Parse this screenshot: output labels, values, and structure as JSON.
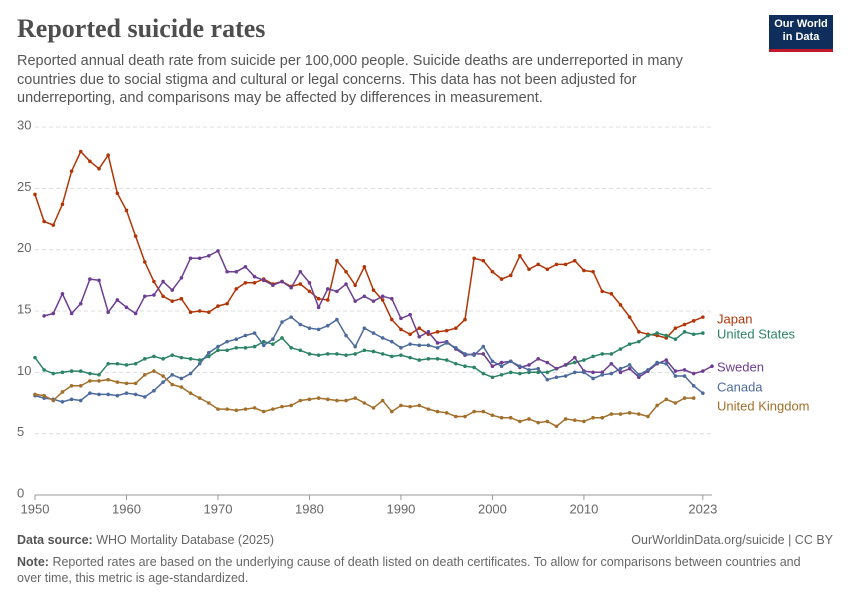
{
  "header": {
    "title": "Reported suicide rates",
    "subtitle": "Reported annual death rate from suicide per 100,000 people. Suicide deaths are underreported in many countries due to social stigma and cultural or legal concerns. This data has not been adjusted for underreporting, and comparisons may be affected by differences in measurement.",
    "logo": [
      "Our World",
      "in Data"
    ]
  },
  "chart_data": {
    "type": "line",
    "grid": true,
    "x": [
      1950,
      1951,
      1952,
      1953,
      1954,
      1955,
      1956,
      1957,
      1958,
      1959,
      1960,
      1961,
      1962,
      1963,
      1964,
      1965,
      1966,
      1967,
      1968,
      1969,
      1970,
      1971,
      1972,
      1973,
      1974,
      1975,
      1976,
      1977,
      1978,
      1979,
      1980,
      1981,
      1982,
      1983,
      1984,
      1985,
      1986,
      1987,
      1988,
      1989,
      1990,
      1991,
      1992,
      1993,
      1994,
      1995,
      1996,
      1997,
      1998,
      1999,
      2000,
      2001,
      2002,
      2003,
      2004,
      2005,
      2006,
      2007,
      2008,
      2009,
      2010,
      2011,
      2012,
      2013,
      2014,
      2015,
      2016,
      2017,
      2018,
      2019,
      2020,
      2021,
      2022,
      2023,
      2024
    ],
    "xlim": [
      1950,
      2024
    ],
    "xticks": [
      1950,
      1960,
      1970,
      1980,
      1990,
      2000,
      2010,
      2023
    ],
    "ylim": [
      0,
      30
    ],
    "yticks": [
      0,
      5,
      10,
      15,
      20,
      25,
      30
    ],
    "series": [
      {
        "name": "Japan",
        "color": "#b13507",
        "values": [
          24.5,
          22.3,
          22.0,
          23.7,
          26.4,
          28.0,
          27.2,
          26.6,
          27.7,
          24.6,
          23.2,
          21.1,
          19.0,
          17.4,
          16.2,
          15.8,
          16.0,
          14.9,
          15.0,
          14.9,
          15.4,
          15.6,
          16.8,
          17.3,
          17.3,
          17.6,
          17.2,
          17.4,
          17.0,
          17.2,
          16.6,
          16.0,
          15.9,
          19.1,
          18.2,
          17.1,
          18.6,
          16.7,
          15.9,
          14.3,
          13.5,
          13.1,
          13.6,
          13.1,
          13.3,
          13.4,
          13.6,
          14.3,
          19.3,
          19.1,
          18.2,
          17.6,
          17.9,
          19.5,
          18.4,
          18.8,
          18.4,
          18.8,
          18.8,
          19.1,
          18.3,
          18.2,
          16.6,
          16.4,
          15.5,
          14.5,
          13.3,
          13.1,
          13.0,
          12.8,
          13.6,
          13.9,
          14.2,
          14.5,
          null
        ]
      },
      {
        "name": "United States",
        "color": "#2c8465",
        "values": [
          11.2,
          10.2,
          9.9,
          10.0,
          10.1,
          10.1,
          9.9,
          9.8,
          10.7,
          10.7,
          10.6,
          10.7,
          11.1,
          11.3,
          11.1,
          11.4,
          11.2,
          11.1,
          11.0,
          11.3,
          11.8,
          11.8,
          12.0,
          12.0,
          12.1,
          12.5,
          12.3,
          12.8,
          12.0,
          11.8,
          11.5,
          11.4,
          11.5,
          11.5,
          11.4,
          11.5,
          11.8,
          11.7,
          11.5,
          11.3,
          11.4,
          11.2,
          11.0,
          11.1,
          11.1,
          11.0,
          10.7,
          10.5,
          10.4,
          9.9,
          9.6,
          9.8,
          10.0,
          9.9,
          10.0,
          10.0,
          10.0,
          10.3,
          10.6,
          10.8,
          11.0,
          11.3,
          11.5,
          11.5,
          11.9,
          12.3,
          12.5,
          13.0,
          13.2,
          13.0,
          12.7,
          13.3,
          13.1,
          13.2,
          null
        ]
      },
      {
        "name": "Sweden",
        "color": "#6d3e91",
        "values": [
          null,
          14.6,
          14.8,
          16.4,
          14.8,
          15.6,
          17.6,
          17.5,
          14.9,
          15.9,
          15.3,
          14.8,
          16.2,
          16.3,
          17.4,
          16.7,
          17.7,
          19.3,
          19.3,
          19.5,
          19.9,
          18.2,
          18.2,
          18.6,
          17.8,
          17.5,
          17.1,
          17.4,
          16.9,
          18.2,
          17.3,
          15.3,
          16.8,
          16.6,
          17.2,
          15.8,
          16.2,
          15.8,
          16.2,
          16.0,
          14.4,
          14.7,
          12.9,
          13.3,
          12.4,
          12.5,
          11.9,
          11.4,
          11.5,
          11.5,
          10.5,
          10.8,
          10.9,
          10.4,
          10.6,
          11.1,
          10.8,
          10.3,
          10.6,
          11.2,
          10.1,
          10.0,
          10.0,
          10.7,
          10.0,
          10.3,
          9.6,
          10.1,
          10.7,
          11.0,
          10.1,
          10.2,
          9.9,
          10.1,
          10.5
        ]
      },
      {
        "name": "Canada",
        "color": "#4c6a9c",
        "values": [
          8.1,
          7.9,
          7.8,
          7.6,
          7.8,
          7.7,
          8.3,
          8.2,
          8.2,
          8.1,
          8.3,
          8.2,
          8.0,
          8.5,
          9.2,
          9.8,
          9.5,
          9.9,
          10.7,
          11.6,
          12.1,
          12.5,
          12.7,
          13.0,
          13.2,
          12.2,
          12.7,
          14.1,
          14.5,
          13.9,
          13.6,
          13.5,
          13.8,
          14.3,
          13.0,
          12.1,
          13.6,
          13.2,
          12.8,
          12.5,
          12.0,
          12.3,
          12.2,
          12.2,
          12.0,
          12.4,
          12.0,
          11.5,
          11.4,
          12.1,
          10.9,
          10.5,
          10.9,
          10.5,
          10.2,
          10.3,
          9.4,
          9.6,
          9.7,
          10.0,
          10.0,
          9.5,
          9.8,
          9.9,
          10.3,
          10.6,
          9.8,
          10.2,
          10.8,
          10.7,
          9.7,
          9.7,
          8.9,
          8.3,
          null
        ]
      },
      {
        "name": "United Kingdom",
        "color": "#a2702b",
        "values": [
          8.2,
          8.1,
          7.7,
          8.4,
          8.9,
          8.9,
          9.3,
          9.3,
          9.4,
          9.2,
          9.1,
          9.1,
          9.8,
          10.1,
          9.7,
          9.0,
          8.8,
          8.3,
          7.9,
          7.5,
          7.0,
          7.0,
          6.9,
          7.0,
          7.1,
          6.8,
          7.0,
          7.2,
          7.3,
          7.7,
          7.8,
          7.9,
          7.8,
          7.7,
          7.7,
          7.9,
          7.5,
          7.1,
          7.7,
          6.8,
          7.3,
          7.2,
          7.3,
          7.0,
          6.8,
          6.7,
          6.4,
          6.4,
          6.8,
          6.8,
          6.5,
          6.3,
          6.3,
          6.0,
          6.2,
          5.9,
          6.0,
          5.6,
          6.2,
          6.1,
          6.0,
          6.3,
          6.3,
          6.6,
          6.6,
          6.7,
          6.6,
          6.4,
          7.3,
          7.8,
          7.5,
          7.9,
          7.9,
          null,
          null
        ]
      }
    ]
  },
  "footer": {
    "source_label": "Data source:",
    "source": "WHO Mortality Database (2025)",
    "url": "OurWorldinData.org/suicide | CC BY",
    "note_label": "Note:",
    "note": "Reported rates are based on the underlying cause of death listed on death certificates. To allow for comparisons between countries and over time, this metric is age-standardized."
  }
}
